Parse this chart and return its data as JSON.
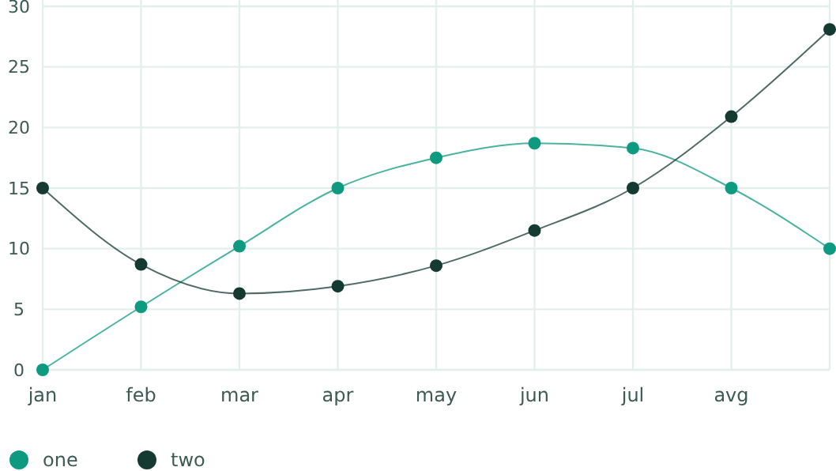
{
  "chart_data": {
    "type": "line",
    "categories": [
      "jan",
      "feb",
      "mar",
      "apr",
      "may",
      "jun",
      "jul",
      "avg",
      null
    ],
    "ylim": [
      0,
      30
    ],
    "yticks": [
      0,
      5,
      10,
      15,
      20,
      25,
      30
    ],
    "grid": true,
    "legend": "bottom left",
    "marker": "circle",
    "line_style": "solid",
    "series": [
      {
        "name": "one",
        "color": "#0e9a80",
        "values": [
          0,
          5.2,
          10.2,
          15,
          17.5,
          18.7,
          18.3,
          15,
          10
        ]
      },
      {
        "name": "two",
        "color": "#143a31",
        "values": [
          15,
          8.7,
          6.3,
          6.9,
          8.6,
          11.5,
          15,
          20.9,
          28.1
        ]
      }
    ]
  }
}
